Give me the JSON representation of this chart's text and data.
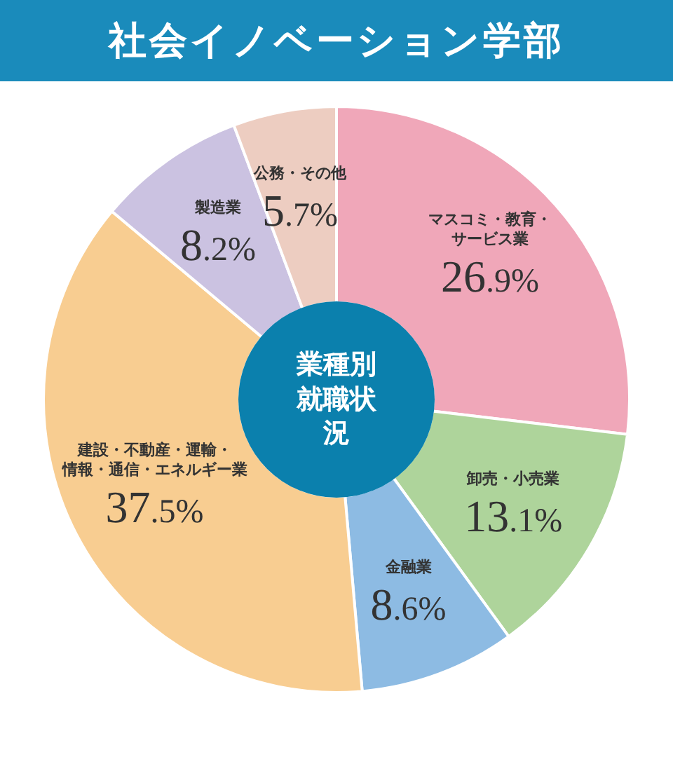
{
  "chart_data": {
    "type": "donut",
    "title": "社会イノベーション学部",
    "annotations": [
      "業種別就職状況"
    ],
    "categories": [
      "マスコミ・教育・サービス業",
      "卸売・小売業",
      "金融業",
      "建設・不動産・運輸・情報・通信・エネルギー業",
      "製造業",
      "公務・その他"
    ],
    "values": [
      26.9,
      13.1,
      8.6,
      37.5,
      8.2,
      5.7
    ],
    "colors": [
      "#f0a7b9",
      "#aed49b",
      "#8dbbe3",
      "#f8cd91",
      "#cbc2e1",
      "#edcdc1"
    ],
    "value_labels": [
      "26.9%",
      "13.1%",
      "8.6%",
      "37.5%",
      "8.2%",
      "5.7%"
    ],
    "legend": false
  }
}
